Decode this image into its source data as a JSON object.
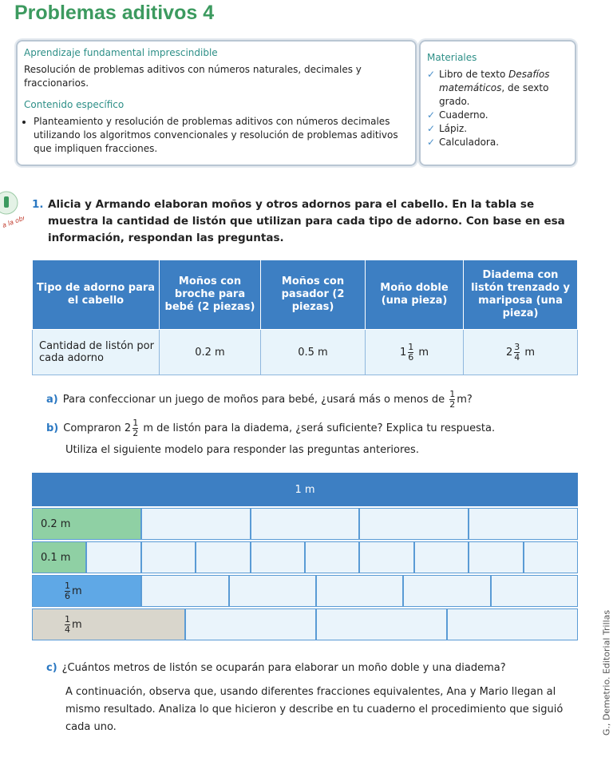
{
  "header": {
    "title": "Problemas aditivos 4"
  },
  "learning_box": {
    "heading": "Aprendizaje fundamental imprescindible",
    "text": "Resolución de problemas aditivos con números naturales, decimales y fraccionarios.",
    "content_heading": "Contenido específico",
    "bullets": [
      "Planteamiento y resolución de problemas aditivos con números decimales utilizando los algoritmos convencionales y resolución de problemas aditivos que impliquen fracciones."
    ]
  },
  "materials": {
    "heading": "Materiales",
    "items": [
      {
        "text": "Libro de texto ",
        "italic": "Desafíos matemáticos",
        "rest": ", de sexto grado."
      },
      {
        "text": "Cuaderno."
      },
      {
        "text": "Lápiz."
      },
      {
        "text": "Calculadora."
      }
    ]
  },
  "icon": {
    "label": "a la obra"
  },
  "problem": {
    "number": "1.",
    "text": "Alicia y Armando elaboran moños y otros adornos para el cabello. En la tabla se muestra la cantidad de listón que utilizan para cada tipo de adorno. Con base en esa información, respondan las preguntas."
  },
  "table": {
    "header": [
      "Tipo de adorno para el cabello",
      "Moños con broche para bebé (2 piezas)",
      "Moños con pasador (2 piezas)",
      "Moño doble (una pieza)",
      "Diadema con listón trenzado y mariposa (una pieza)"
    ],
    "rows": [
      {
        "label": "Cantidad de listón por cada adorno",
        "cells": [
          {
            "text": "0.2 m"
          },
          {
            "text": "0.5 m"
          },
          {
            "whole": "1",
            "num": "1",
            "den": "6",
            "unit": "m"
          },
          {
            "whole": "2",
            "num": "3",
            "den": "4",
            "unit": "m"
          }
        ]
      }
    ]
  },
  "question_a": {
    "label": "a)",
    "text": "Para confeccionar un juego de moños para bebé, ¿usará más o menos de",
    "num": "1",
    "den": "2",
    "end": "m?"
  },
  "question_b": {
    "label": "b)",
    "text": "Compraron",
    "whole": "2",
    "num": "1",
    "den": "2",
    "end": "m de listón para la diadema, ¿será suficiente? Explica tu respuesta."
  },
  "instruction": "Utiliza el siguiente modelo para responder las preguntas anteriores.",
  "model": {
    "header": "1 m",
    "rows": [
      {
        "label": "0.2 m"
      },
      {
        "label": "0.1 m"
      },
      {
        "num": "1",
        "den": "6",
        "unit": "m"
      },
      {
        "num": "1",
        "den": "4",
        "unit": "m"
      }
    ]
  },
  "question_c": {
    "label": "c)",
    "text": "¿Cuántos metros de listón se ocuparán para elaborar un moño doble y una diadema?"
  },
  "paragraph": "A continuación, observa que, usando diferentes fracciones equivalentes, Ana y Mario llegan al mismo resultado. Analiza lo que hicieron y describe en tu cuaderno el procedimiento que siguió cada uno.",
  "credit": "G., Demetrio. Editorial Trillas"
}
